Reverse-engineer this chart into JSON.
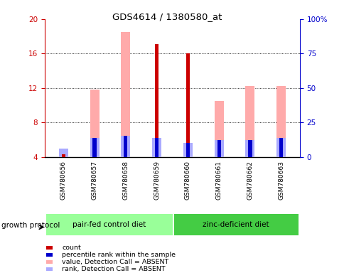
{
  "title": "GDS4614 / 1380580_at",
  "samples": [
    "GSM780656",
    "GSM780657",
    "GSM780658",
    "GSM780659",
    "GSM780660",
    "GSM780661",
    "GSM780662",
    "GSM780663"
  ],
  "ylim_left": [
    4,
    20
  ],
  "ylim_right": [
    0,
    100
  ],
  "yticks_left": [
    4,
    8,
    12,
    16,
    20
  ],
  "yticks_right": [
    0,
    25,
    50,
    75,
    100
  ],
  "count_values": [
    4.3,
    4.0,
    4.0,
    17.1,
    16.0,
    4.0,
    4.0,
    4.0
  ],
  "count_color": "#cc0000",
  "percentile_values": [
    4.0,
    6.25,
    6.5,
    6.2,
    5.6,
    6.0,
    6.0,
    6.25
  ],
  "percentile_color": "#0000cc",
  "value_absent_values": [
    5.0,
    11.8,
    18.5,
    0,
    0,
    10.5,
    12.2,
    12.2
  ],
  "value_absent_color": "#ffaaaa",
  "rank_absent_values": [
    5.0,
    6.25,
    6.5,
    6.2,
    5.6,
    6.0,
    6.0,
    6.25
  ],
  "rank_absent_color": "#aaaaff",
  "group1_label": "pair-fed control diet",
  "group2_label": "zinc-deficient diet",
  "group1_color": "#99ff99",
  "group2_color": "#44cc44",
  "protocol_label": "growth protocol",
  "left_axis_color": "#cc0000",
  "right_axis_color": "#0000cc",
  "plot_bg": "#ffffff",
  "label_bg": "#cccccc",
  "thin_bar_width": 0.12,
  "wide_bar_width": 0.3
}
